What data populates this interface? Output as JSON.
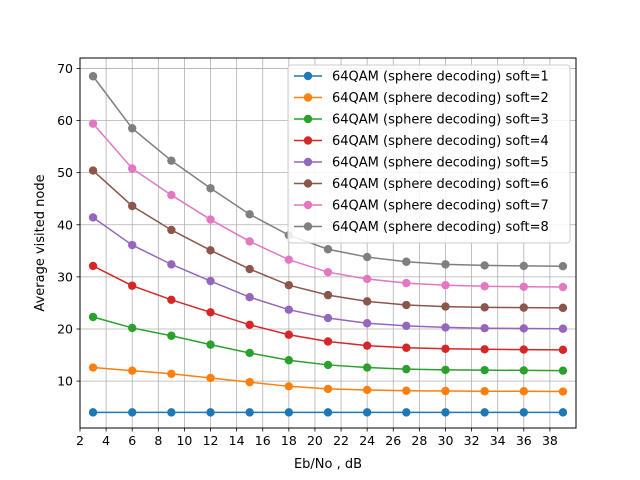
{
  "chart_data": {
    "type": "line",
    "xlabel": "Eb/No , dB",
    "ylabel": "Average visited node",
    "xlim": [
      2,
      40
    ],
    "ylim": [
      1,
      72
    ],
    "xticks": [
      2,
      4,
      6,
      8,
      10,
      12,
      14,
      16,
      18,
      20,
      22,
      24,
      26,
      28,
      30,
      32,
      34,
      36,
      38
    ],
    "yticks": [
      10,
      20,
      30,
      40,
      50,
      60,
      70
    ],
    "grid": true,
    "legend_position": "top-right",
    "x": [
      3,
      6,
      9,
      12,
      15,
      18,
      21,
      24,
      27,
      30,
      33,
      36,
      39
    ],
    "series": [
      {
        "name": "64QAM (sphere decoding) soft=1",
        "color": "#1f77b4",
        "values": [
          4.0,
          4.0,
          4.0,
          4.0,
          4.0,
          4.0,
          4.0,
          4.0,
          4.0,
          4.0,
          4.0,
          4.0,
          4.0
        ]
      },
      {
        "name": "64QAM (sphere decoding) soft=2",
        "color": "#ff7f0e",
        "values": [
          12.6,
          12.0,
          11.4,
          10.6,
          9.8,
          9.0,
          8.5,
          8.3,
          8.15,
          8.1,
          8.05,
          8.05,
          8.0
        ]
      },
      {
        "name": "64QAM (sphere decoding) soft=3",
        "color": "#2ca02c",
        "values": [
          22.3,
          20.2,
          18.7,
          17.0,
          15.4,
          14.0,
          13.1,
          12.6,
          12.3,
          12.15,
          12.1,
          12.05,
          12.0
        ]
      },
      {
        "name": "64QAM (sphere decoding) soft=4",
        "color": "#d62728",
        "values": [
          32.1,
          28.3,
          25.6,
          23.2,
          20.8,
          18.9,
          17.6,
          16.8,
          16.4,
          16.2,
          16.1,
          16.05,
          16.0
        ]
      },
      {
        "name": "64QAM (sphere decoding) soft=5",
        "color": "#9467bd",
        "values": [
          41.4,
          36.1,
          32.4,
          29.2,
          26.1,
          23.7,
          22.1,
          21.1,
          20.6,
          20.3,
          20.15,
          20.1,
          20.05
        ]
      },
      {
        "name": "64QAM (sphere decoding) soft=6",
        "color": "#8c564b",
        "values": [
          50.4,
          43.6,
          39.0,
          35.1,
          31.5,
          28.4,
          26.5,
          25.3,
          24.6,
          24.3,
          24.15,
          24.1,
          24.05
        ]
      },
      {
        "name": "64QAM (sphere decoding) soft=7",
        "color": "#e377c2",
        "values": [
          59.4,
          50.8,
          45.7,
          41.0,
          36.8,
          33.3,
          30.9,
          29.6,
          28.8,
          28.4,
          28.2,
          28.1,
          28.05
        ]
      },
      {
        "name": "64QAM (sphere decoding) soft=8",
        "color": "#7f7f7f",
        "values": [
          68.5,
          58.5,
          52.3,
          47.0,
          42.0,
          38.0,
          35.3,
          33.8,
          32.9,
          32.4,
          32.2,
          32.1,
          32.05
        ]
      }
    ]
  }
}
